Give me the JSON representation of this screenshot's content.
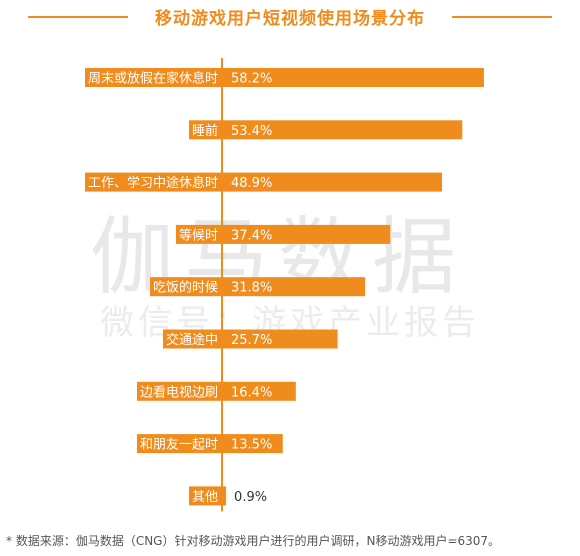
{
  "title": "移动游戏用户短视频使用场景分布",
  "watermark": {
    "main": "伽马数据",
    "sub": "微信号：游戏产业报告"
  },
  "footnote": "*  数据来源：伽马数据（CNG）针对移动游戏用户进行的用户调研，N移动游戏用户=6307。",
  "colors": {
    "bar": "#f08c1e",
    "label_bg": "#f08c1e",
    "label_text": "#ffffff",
    "accent": "#f08c1e"
  },
  "chart_data": {
    "type": "bar",
    "orientation": "horizontal",
    "categories": [
      "周末或放假在家休息时",
      "睡前",
      "工作、学习中途休息时",
      "等候时",
      "吃饭的时候",
      "交通途中",
      "边看电视边刷",
      "和朋友一起时",
      "其他"
    ],
    "values": [
      58.2,
      53.4,
      48.9,
      37.4,
      31.8,
      25.7,
      16.4,
      13.5,
      0.9
    ],
    "value_labels": [
      "58.2%",
      "53.4%",
      "48.9%",
      "37.4%",
      "31.8%",
      "25.7%",
      "16.4%",
      "13.5%",
      "0.9%"
    ],
    "unit": "%"
  }
}
